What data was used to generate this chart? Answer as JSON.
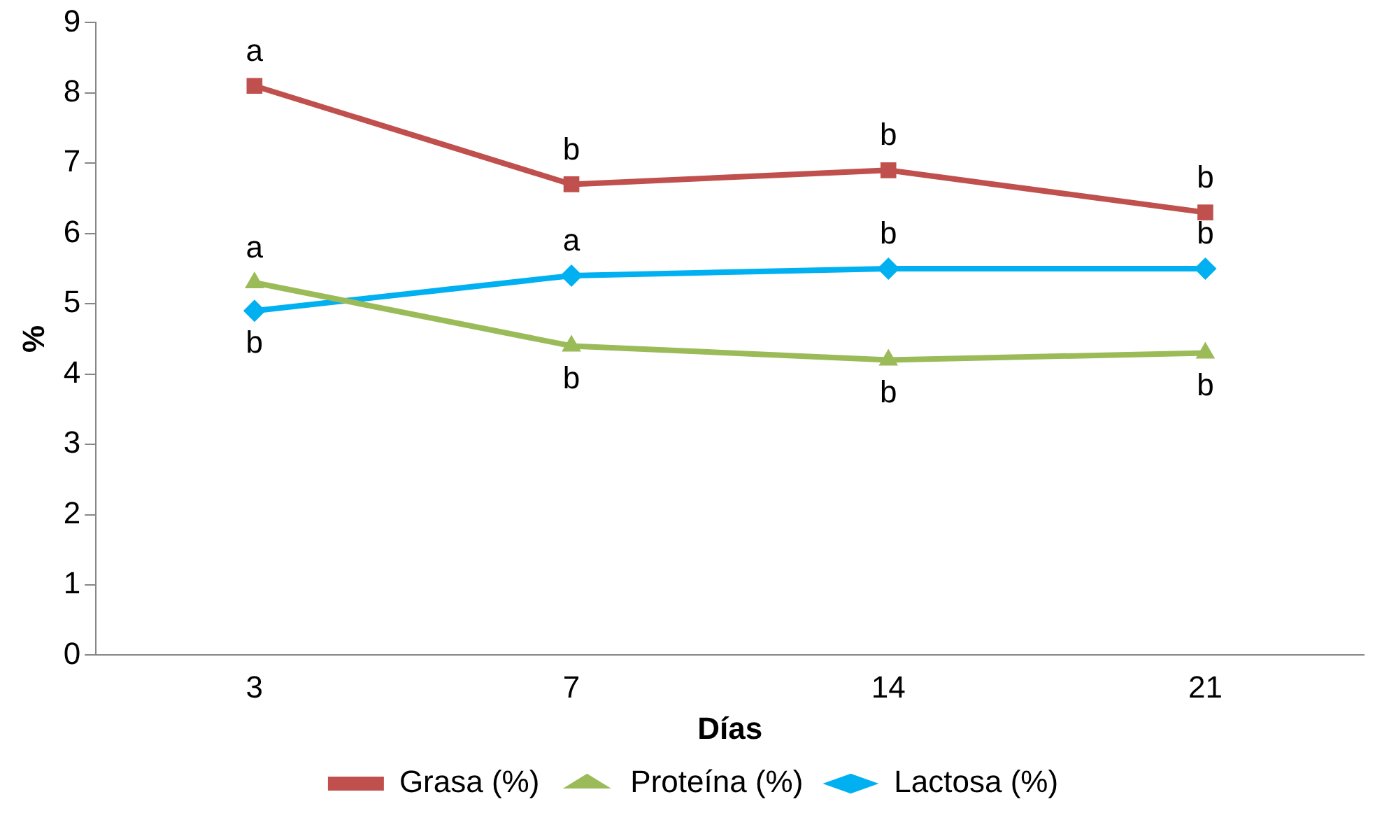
{
  "chart_data": {
    "type": "line",
    "xlabel": "Días",
    "ylabel": "%",
    "categories": [
      "3",
      "7",
      "14",
      "21"
    ],
    "series": [
      {
        "name": "Grasa (%)",
        "color": "#c0504d",
        "marker": "square",
        "values": [
          8.1,
          6.7,
          6.9,
          6.3
        ]
      },
      {
        "name": "Proteína (%)",
        "color": "#9bbb59",
        "marker": "triangle",
        "values": [
          5.3,
          4.4,
          4.2,
          4.3
        ]
      },
      {
        "name": "Lactosa (%)",
        "color": "#00b0f0",
        "marker": "diamond",
        "values": [
          4.9,
          5.4,
          5.5,
          5.5
        ]
      }
    ],
    "ylim": [
      0,
      9
    ],
    "yticks": [
      0,
      1,
      2,
      3,
      4,
      5,
      6,
      7,
      8,
      9
    ],
    "grid": false,
    "legend": "bottom",
    "line_style": "solid",
    "annotations": [
      {
        "text": "a",
        "x": "3",
        "y": 8.1
      },
      {
        "text": "b",
        "x": "7",
        "y": 6.7
      },
      {
        "text": "b",
        "x": "14",
        "y": 6.9
      },
      {
        "text": "b",
        "x": "21",
        "y": 6.3
      },
      {
        "text": "a",
        "x": "3",
        "y": 5.3
      },
      {
        "text": "b",
        "x": "7",
        "y": 4.4
      },
      {
        "text": "b",
        "x": "14",
        "y": 4.2
      },
      {
        "text": "b",
        "x": "21",
        "y": 4.3
      },
      {
        "text": "b",
        "x": "3",
        "y": 4.9
      },
      {
        "text": "a",
        "x": "7",
        "y": 5.4
      },
      {
        "text": "b",
        "x": "14",
        "y": 5.5
      },
      {
        "text": "b",
        "x": "21",
        "y": 5.5
      }
    ]
  }
}
